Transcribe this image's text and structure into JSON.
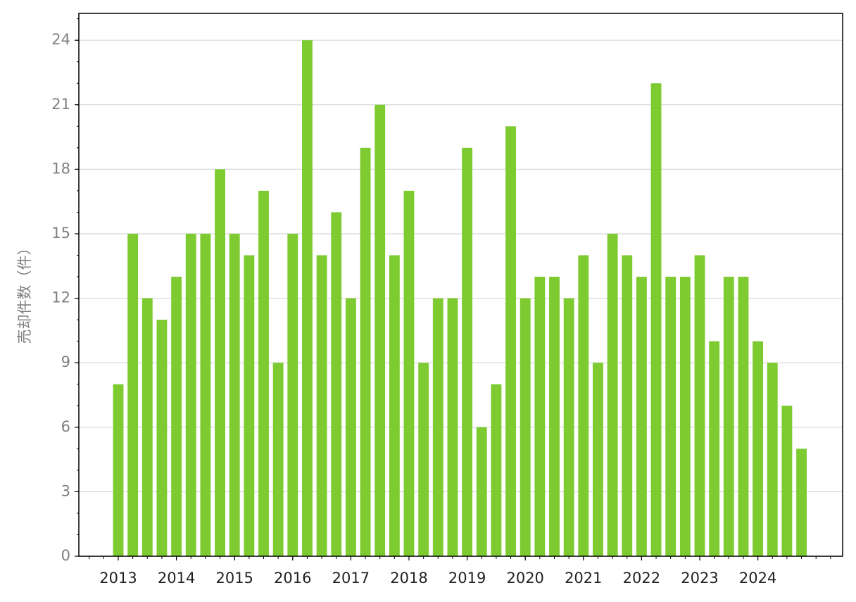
{
  "chart_data": {
    "type": "bar",
    "y_label": "売却件数（件）",
    "categories": [
      "2013",
      null,
      null,
      null,
      "2014",
      null,
      null,
      null,
      "2015",
      null,
      null,
      null,
      "2016",
      null,
      null,
      null,
      "2017",
      null,
      null,
      null,
      "2018",
      null,
      null,
      null,
      "2019",
      null,
      null,
      null,
      "2020",
      null,
      null,
      null,
      "2021",
      null,
      null,
      null,
      "2022",
      null,
      null,
      null,
      "2023",
      null,
      null,
      null,
      "2024",
      null,
      null,
      null
    ],
    "values": [
      8,
      15,
      12,
      11,
      13,
      15,
      15,
      18,
      15,
      14,
      17,
      9,
      15,
      24,
      14,
      16,
      12,
      19,
      21,
      14,
      17,
      9,
      12,
      12,
      19,
      6,
      8,
      20,
      12,
      13,
      13,
      12,
      14,
      9,
      15,
      14,
      13,
      22,
      13,
      13,
      14,
      10,
      13,
      13,
      10,
      9,
      7,
      5
    ],
    "color": "#7dcb31",
    "ylim": [
      0,
      25.25
    ],
    "yticks": [
      0,
      3,
      6,
      9,
      12,
      15,
      18,
      21,
      24
    ],
    "grid": true
  }
}
